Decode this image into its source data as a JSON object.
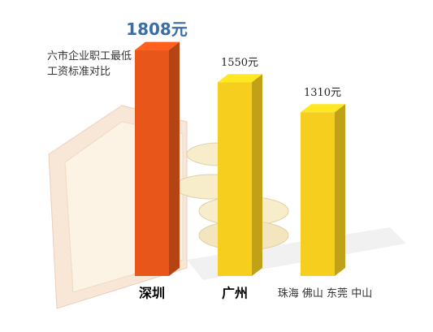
{
  "chart_data": {
    "type": "bar3d",
    "title": "六市企业职工最低工资标准对比",
    "categories": [
      "深圳",
      "广州",
      "珠海 佛山 东莞 中山"
    ],
    "values": [
      1808,
      1550,
      1310
    ],
    "value_labels": [
      "1808元",
      "1550元",
      "1310元"
    ],
    "colors": [
      "#e9561a",
      "#f6cf1e",
      "#f6cf1e"
    ]
  }
}
